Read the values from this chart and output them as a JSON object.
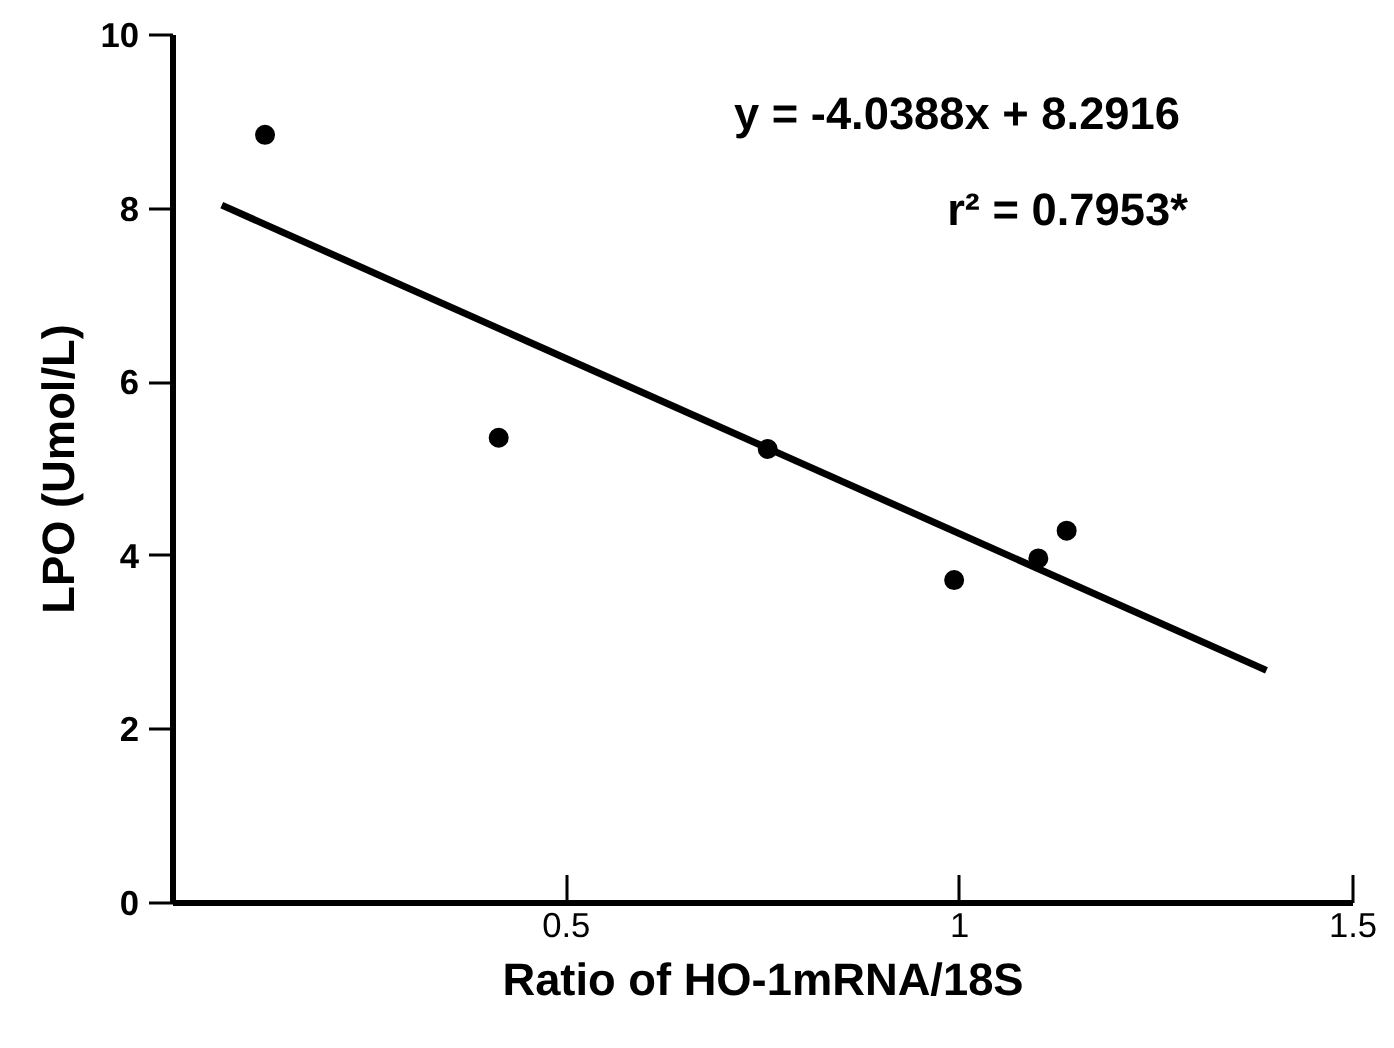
{
  "chart_data": {
    "type": "scatter",
    "xlabel": "Ratio of HO-1mRNA/18S",
    "ylabel": "LPO (Umol/L)",
    "x": [
      0.117,
      0.414,
      0.756,
      0.993,
      1.1,
      1.136
    ],
    "series": [
      {
        "type": "line",
        "color": "#000000",
        "x": [
          0.062,
          1.39
        ],
        "values": [
          8.04,
          2.68
        ]
      },
      {
        "marker": "circle",
        "color": "#000000",
        "values": [
          8.85,
          5.36,
          5.23,
          3.72,
          3.97,
          4.29
        ]
      }
    ],
    "xlim": [
      0,
      1.5
    ],
    "ylim": [
      0,
      10
    ],
    "xticks": [
      0.5,
      1,
      1.5
    ],
    "yticks": [
      0,
      2,
      4,
      6,
      8,
      10
    ],
    "grid": false,
    "line_style": "solid",
    "annotations": [
      "y = -4.0388x + 8.2916",
      "r² = 0.7953*"
    ]
  }
}
